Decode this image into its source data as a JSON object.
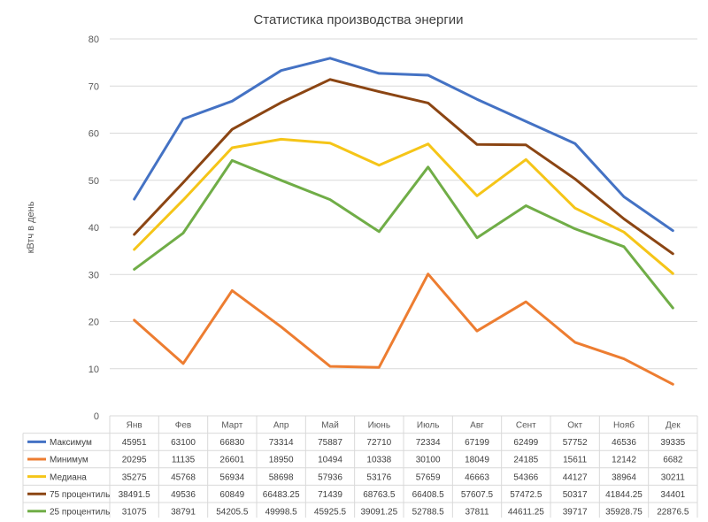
{
  "chart_data": {
    "type": "line",
    "title": "Статистика производства энергии",
    "ylabel": "кВтч в день",
    "xlabel": "",
    "ylim": [
      0,
      80
    ],
    "yticks": [
      0,
      10,
      20,
      30,
      40,
      50,
      60,
      70,
      80
    ],
    "grid": true,
    "legend": "table-below",
    "categories": [
      "Янв",
      "Фев",
      "Март",
      "Апр",
      "Май",
      "Июнь",
      "Июль",
      "Авг",
      "Сент",
      "Окт",
      "Нояб",
      "Дек"
    ],
    "series": [
      {
        "name": "Максимум",
        "color": "#4472C4",
        "values": [
          46,
          63,
          66.8,
          73.3,
          75.9,
          72.7,
          72.3,
          67.2,
          62.5,
          57.8,
          46.5,
          39.3
        ],
        "table": [
          "45951",
          "63100",
          "66830",
          "73314",
          "75887",
          "72710",
          "72334",
          "67199",
          "62499",
          "57752",
          "46536",
          "39335"
        ]
      },
      {
        "name": "Минимум",
        "color": "#ED7D31",
        "values": [
          20.3,
          11.1,
          26.6,
          18.9,
          10.5,
          10.3,
          30.1,
          18,
          24.2,
          15.6,
          12.1,
          6.7
        ],
        "table": [
          "20295",
          "11135",
          "26601",
          "18950",
          "10494",
          "10338",
          "30100",
          "18049",
          "24185",
          "15611",
          "12142",
          "6682"
        ]
      },
      {
        "name": "Медиана",
        "color": "#F5C518",
        "values": [
          35.3,
          45.8,
          56.9,
          58.7,
          57.9,
          53.2,
          57.7,
          46.7,
          54.4,
          44.1,
          39,
          30.2
        ],
        "table": [
          "35275",
          "45768",
          "56934",
          "58698",
          "57936",
          "53176",
          "57659",
          "46663",
          "54366",
          "44127",
          "38964",
          "30211"
        ]
      },
      {
        "name": "75 процентиль",
        "color": "#8B4513",
        "values": [
          38.5,
          49.5,
          60.8,
          66.5,
          71.4,
          68.8,
          66.4,
          57.6,
          57.5,
          50.3,
          41.8,
          34.4
        ],
        "table": [
          "38491.5",
          "49536",
          "60849",
          "66483.25",
          "71439",
          "68763.5",
          "66408.5",
          "57607.5",
          "57472.5",
          "50317",
          "41844.25",
          "34401"
        ]
      },
      {
        "name": "25 процентиль",
        "color": "#70AD47",
        "values": [
          31.1,
          38.8,
          54.2,
          50,
          45.9,
          39.1,
          52.8,
          37.8,
          44.6,
          39.7,
          35.9,
          22.9
        ],
        "table": [
          "31075",
          "38791",
          "54205.5",
          "49998.5",
          "45925.5",
          "39091.25",
          "52788.5",
          "37811",
          "44611.25",
          "39717",
          "35928.75",
          "22876.5"
        ]
      }
    ]
  }
}
